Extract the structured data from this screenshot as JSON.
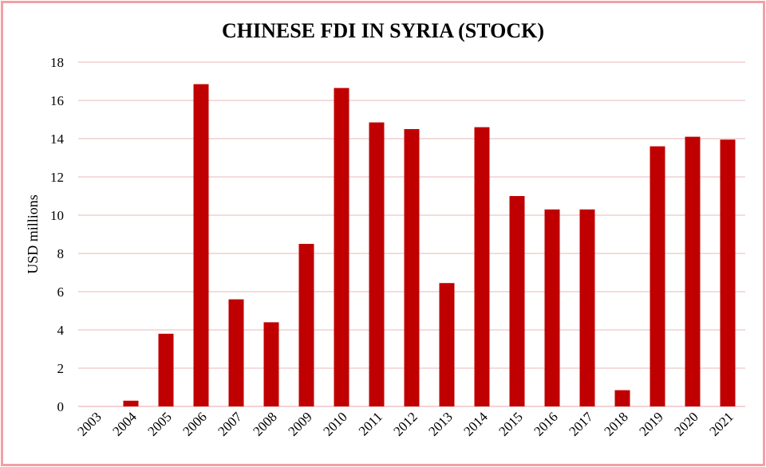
{
  "chart_data": {
    "type": "bar",
    "title": "CHINESE FDI IN SYRIA (STOCK)",
    "xlabel": "",
    "ylabel": "USD millions",
    "ylim": [
      0,
      18
    ],
    "yticks": [
      0,
      2,
      4,
      6,
      8,
      10,
      12,
      14,
      16,
      18
    ],
    "grid": true,
    "legend": "none",
    "categories": [
      "2003",
      "2004",
      "2005",
      "2006",
      "2007",
      "2008",
      "2009",
      "2010",
      "2011",
      "2012",
      "2013",
      "2014",
      "2015",
      "2016",
      "2017",
      "2018",
      "2019",
      "2020",
      "2021"
    ],
    "values": [
      0,
      0.3,
      3.8,
      16.85,
      5.6,
      4.4,
      8.5,
      16.65,
      14.85,
      14.5,
      6.45,
      14.6,
      11.0,
      10.3,
      10.3,
      0.85,
      13.6,
      14.1,
      13.95
    ],
    "colors": {
      "bar": "#c00000",
      "grid": "#e9b7b9",
      "frame": "#f3a0a6"
    }
  }
}
